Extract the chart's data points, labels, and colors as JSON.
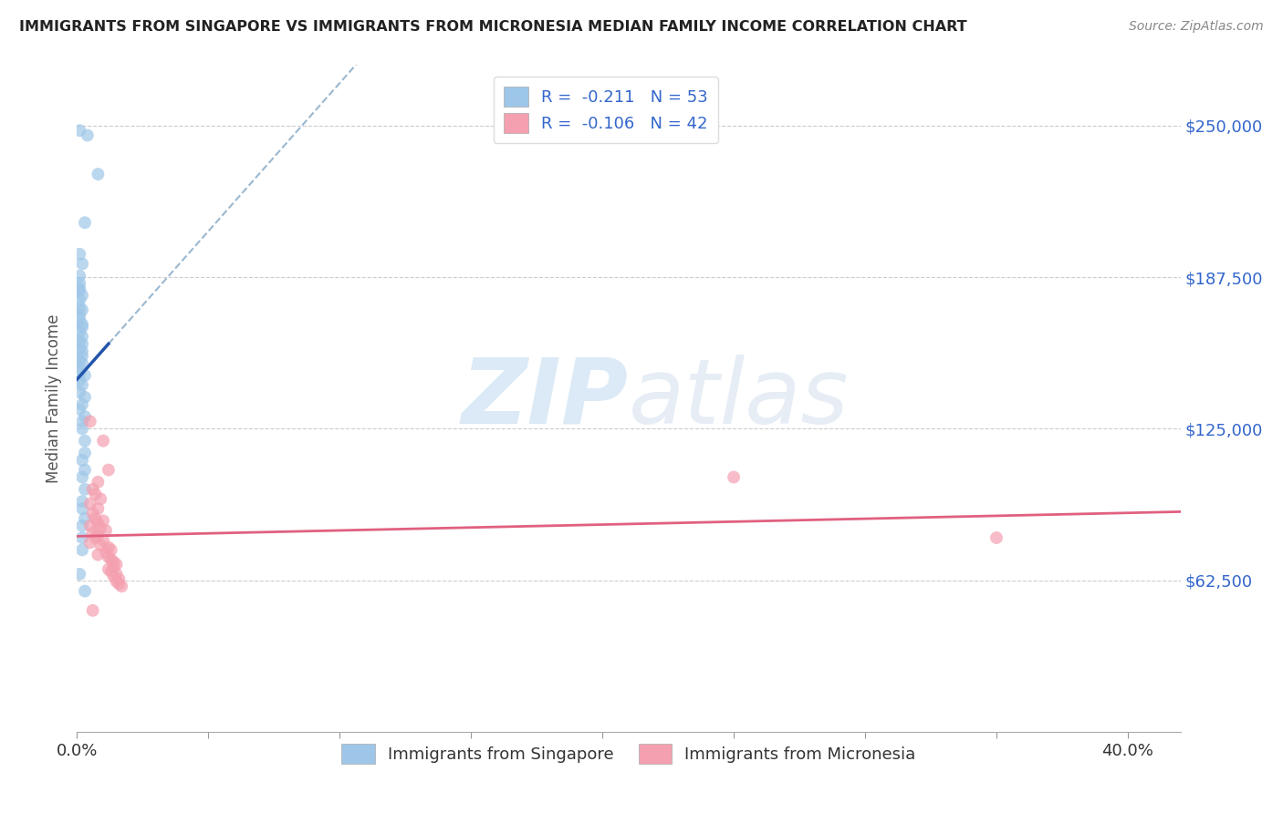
{
  "title": "IMMIGRANTS FROM SINGAPORE VS IMMIGRANTS FROM MICRONESIA MEDIAN FAMILY INCOME CORRELATION CHART",
  "source": "Source: ZipAtlas.com",
  "ylabel": "Median Family Income",
  "ytick_labels": [
    "$250,000",
    "$187,500",
    "$125,000",
    "$62,500"
  ],
  "ytick_values": [
    250000,
    187500,
    125000,
    62500
  ],
  "ylim": [
    0,
    275000
  ],
  "xlim": [
    0.0,
    0.42
  ],
  "watermark": "ZIPatlas",
  "legend_singapore_R": -0.211,
  "legend_singapore_N": 53,
  "legend_micronesia_R": -0.106,
  "legend_micronesia_N": 42,
  "singapore_color": "#9ec6e8",
  "micronesia_color": "#f4a0b0",
  "singapore_line_color": "#2255aa",
  "micronesia_line_color": "#e06080",
  "dashed_line_color": "#9ab8d0",
  "background_color": "#ffffff",
  "grid_color": "#cccccc",
  "singapore_scatter": [
    [
      0.001,
      248000
    ],
    [
      0.004,
      246000
    ],
    [
      0.008,
      230000
    ],
    [
      0.003,
      210000
    ],
    [
      0.001,
      197000
    ],
    [
      0.002,
      193000
    ],
    [
      0.001,
      188000
    ],
    [
      0.001,
      185000
    ],
    [
      0.001,
      183000
    ],
    [
      0.001,
      182000
    ],
    [
      0.002,
      180000
    ],
    [
      0.001,
      178000
    ],
    [
      0.001,
      175000
    ],
    [
      0.002,
      174000
    ],
    [
      0.001,
      172000
    ],
    [
      0.001,
      170000
    ],
    [
      0.002,
      168000
    ],
    [
      0.002,
      167000
    ],
    [
      0.001,
      165000
    ],
    [
      0.002,
      163000
    ],
    [
      0.001,
      161000
    ],
    [
      0.002,
      160000
    ],
    [
      0.001,
      158000
    ],
    [
      0.002,
      157000
    ],
    [
      0.002,
      155000
    ],
    [
      0.001,
      153000
    ],
    [
      0.002,
      152000
    ],
    [
      0.001,
      150000
    ],
    [
      0.001,
      148000
    ],
    [
      0.003,
      147000
    ],
    [
      0.001,
      145000
    ],
    [
      0.002,
      143000
    ],
    [
      0.001,
      140000
    ],
    [
      0.003,
      138000
    ],
    [
      0.002,
      135000
    ],
    [
      0.001,
      133000
    ],
    [
      0.003,
      130000
    ],
    [
      0.002,
      128000
    ],
    [
      0.002,
      125000
    ],
    [
      0.003,
      120000
    ],
    [
      0.003,
      115000
    ],
    [
      0.002,
      112000
    ],
    [
      0.003,
      108000
    ],
    [
      0.002,
      105000
    ],
    [
      0.003,
      100000
    ],
    [
      0.002,
      95000
    ],
    [
      0.002,
      92000
    ],
    [
      0.003,
      88000
    ],
    [
      0.002,
      85000
    ],
    [
      0.002,
      80000
    ],
    [
      0.002,
      75000
    ],
    [
      0.001,
      65000
    ],
    [
      0.003,
      58000
    ]
  ],
  "micronesia_scatter": [
    [
      0.005,
      128000
    ],
    [
      0.01,
      120000
    ],
    [
      0.012,
      108000
    ],
    [
      0.008,
      103000
    ],
    [
      0.006,
      100000
    ],
    [
      0.007,
      98000
    ],
    [
      0.009,
      96000
    ],
    [
      0.005,
      94000
    ],
    [
      0.008,
      92000
    ],
    [
      0.006,
      90000
    ],
    [
      0.007,
      88000
    ],
    [
      0.01,
      87000
    ],
    [
      0.008,
      86000
    ],
    [
      0.005,
      85000
    ],
    [
      0.009,
      84000
    ],
    [
      0.011,
      83000
    ],
    [
      0.006,
      82000
    ],
    [
      0.008,
      81000
    ],
    [
      0.007,
      80000
    ],
    [
      0.01,
      79000
    ],
    [
      0.005,
      78000
    ],
    [
      0.009,
      77000
    ],
    [
      0.012,
      76000
    ],
    [
      0.013,
      75000
    ],
    [
      0.011,
      74000
    ],
    [
      0.008,
      73000
    ],
    [
      0.012,
      72000
    ],
    [
      0.013,
      71000
    ],
    [
      0.014,
      70000
    ],
    [
      0.015,
      69000
    ],
    [
      0.014,
      68000
    ],
    [
      0.012,
      67000
    ],
    [
      0.013,
      66000
    ],
    [
      0.015,
      65000
    ],
    [
      0.014,
      64000
    ],
    [
      0.016,
      63000
    ],
    [
      0.015,
      62000
    ],
    [
      0.016,
      61000
    ],
    [
      0.017,
      60000
    ],
    [
      0.006,
      50000
    ],
    [
      0.35,
      80000
    ],
    [
      0.25,
      105000
    ]
  ],
  "xtick_positions": [
    0.0,
    0.05,
    0.1,
    0.15,
    0.2,
    0.25,
    0.3,
    0.35,
    0.4
  ],
  "xtick_show_labels": [
    true,
    false,
    false,
    false,
    false,
    false,
    false,
    false,
    true
  ]
}
